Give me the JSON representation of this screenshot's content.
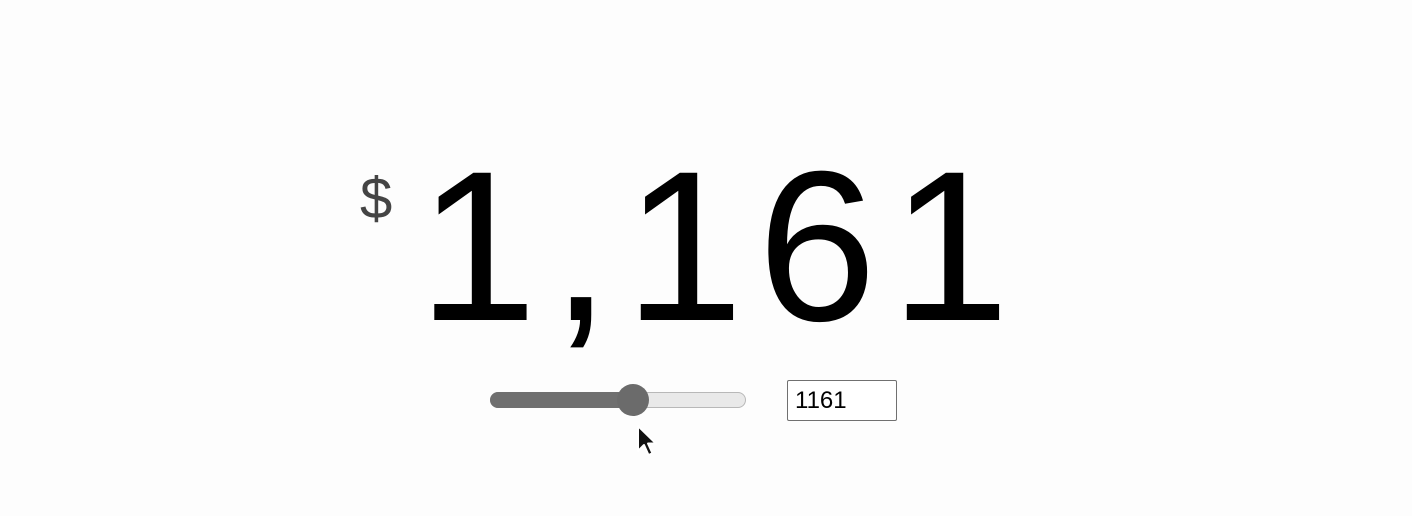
{
  "price": {
    "currency_symbol": "$",
    "formatted_amount": "1,161"
  },
  "slider": {
    "fill_fraction": 0.56,
    "colors": {
      "fill": "#6f6f6f",
      "track": "#e9e9e9",
      "thumb": "#6b6b6b"
    }
  },
  "amount_input": {
    "value": "1161"
  }
}
